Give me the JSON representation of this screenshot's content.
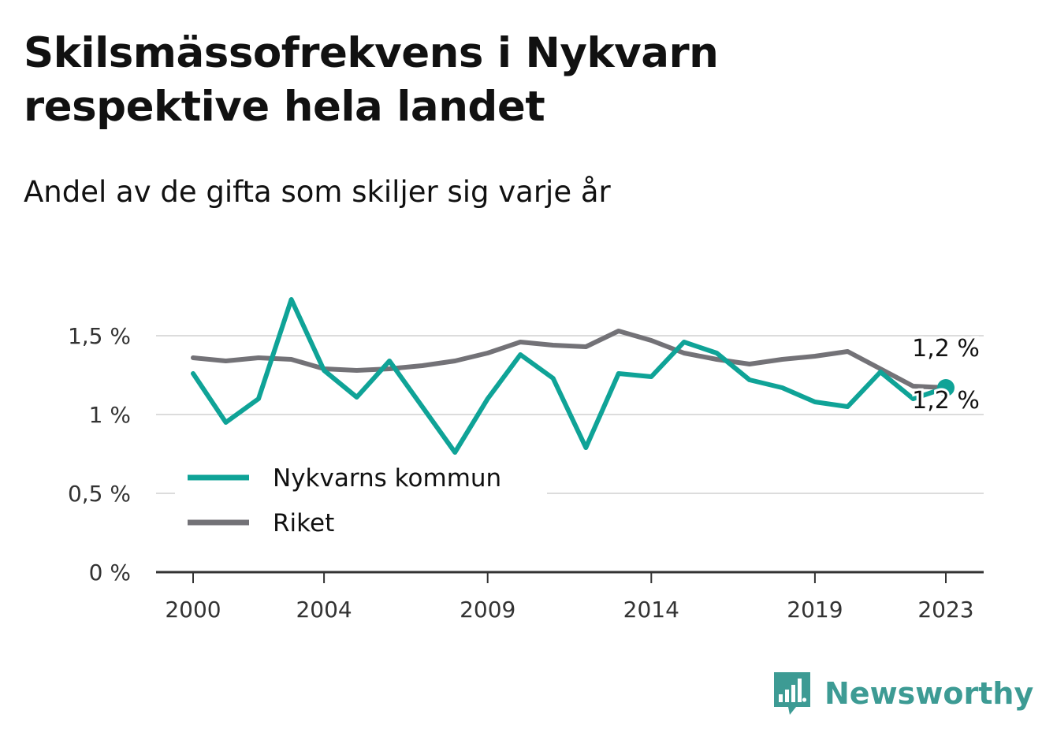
{
  "title": "Skilsmässofrekvens i Nykvarn respektive hela landet",
  "subtitle": "Andel av de gifta som skiljer sig varje år",
  "brand": {
    "name": "Newsworthy",
    "color": "#3d9b94",
    "logo_icon": "newsworthy-bar-chart-speech-bubble-icon"
  },
  "chart_data": {
    "type": "line",
    "x": [
      2000,
      2001,
      2002,
      2003,
      2004,
      2005,
      2006,
      2007,
      2008,
      2009,
      2010,
      2011,
      2012,
      2013,
      2014,
      2015,
      2016,
      2017,
      2018,
      2019,
      2020,
      2021,
      2022,
      2023
    ],
    "x_ticks": [
      2000,
      2004,
      2009,
      2014,
      2019,
      2023
    ],
    "y_ticks": [
      {
        "value": 0,
        "label": "0 %"
      },
      {
        "value": 0.5,
        "label": "0,5 %"
      },
      {
        "value": 1,
        "label": "1 %"
      },
      {
        "value": 1.5,
        "label": "1,5 %"
      }
    ],
    "ylim": [
      0,
      1.8
    ],
    "grid": true,
    "legend_position": "bottom-left",
    "series": [
      {
        "name": "Nykvarns kommun",
        "color": "#0fa397",
        "values": [
          1.26,
          0.95,
          1.1,
          1.73,
          1.28,
          1.11,
          1.34,
          1.05,
          0.76,
          1.1,
          1.38,
          1.23,
          0.79,
          1.26,
          1.24,
          1.46,
          1.39,
          1.22,
          1.17,
          1.08,
          1.05,
          1.27,
          1.1,
          1.17
        ],
        "end_label": "1,2 %",
        "end_marker": true
      },
      {
        "name": "Riket",
        "color": "#737277",
        "values": [
          1.36,
          1.34,
          1.36,
          1.35,
          1.29,
          1.28,
          1.29,
          1.31,
          1.34,
          1.39,
          1.46,
          1.44,
          1.43,
          1.53,
          1.47,
          1.39,
          1.35,
          1.32,
          1.35,
          1.37,
          1.4,
          1.29,
          1.18,
          1.17
        ],
        "end_label": "1,2 %",
        "end_marker": false
      }
    ]
  }
}
